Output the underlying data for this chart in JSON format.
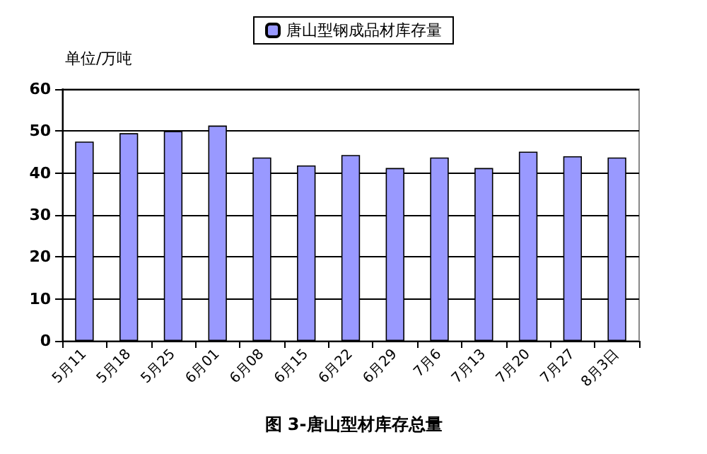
{
  "chart_data": {
    "type": "bar",
    "title": "图 3-唐山型材库存总量",
    "ylabel": "单位/万吨",
    "categories": [
      "5月11",
      "5月18",
      "5月25",
      "6月01",
      "6月08",
      "6月15",
      "6月22",
      "6月29",
      "7月6",
      "7月13",
      "7月20",
      "7月27",
      "8月3日"
    ],
    "series": [
      {
        "name": "唐山型钢成品材库存量",
        "color": "#9999ff",
        "values": [
          47.5,
          49.5,
          50,
          51.3,
          43.7,
          41.8,
          44.3,
          41.2,
          43.7,
          41.2,
          45.1,
          44,
          43.7
        ]
      }
    ],
    "ylim": [
      0,
      60
    ],
    "yticks": [
      0,
      10,
      20,
      30,
      40,
      50,
      60
    ],
    "grid": "y",
    "legend": "top"
  }
}
